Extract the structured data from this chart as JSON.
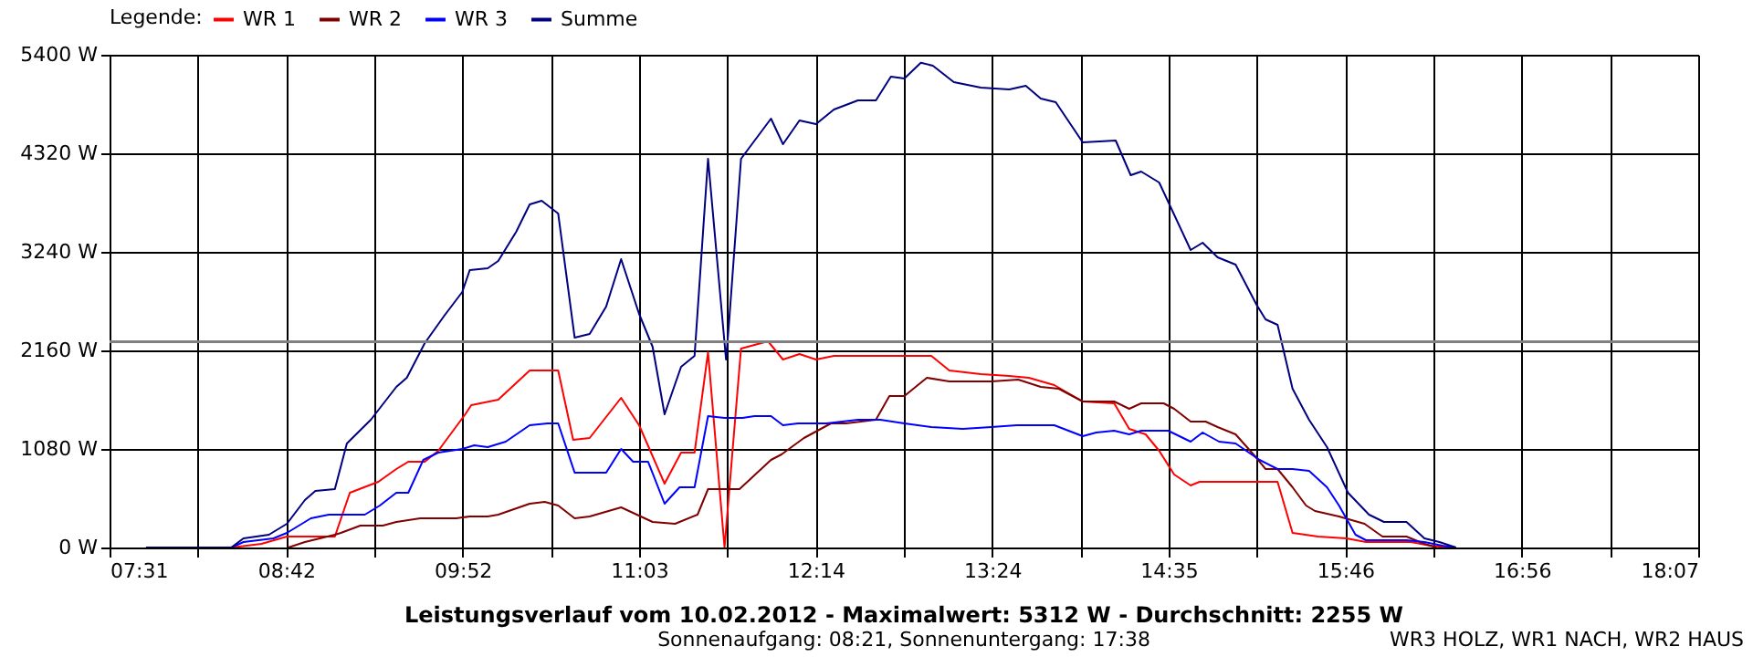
{
  "chart_data": {
    "type": "line",
    "title": "Leistungsverlauf vom 10.02.2012 - Maximalwert: 5312 W - Durchschnitt: 2255 W",
    "subtitle": "Sonnenaufgang: 08:21, Sonnenuntergang: 17:38",
    "legend_title": "Legende:",
    "annotations": [
      "WR3 HOLZ, WR1 NACH, WR2 HAUS"
    ],
    "xlim": [
      7.5167,
      18.1167
    ],
    "xticks": [
      {
        "value": 7.5167,
        "label": "07:31"
      },
      {
        "value": 8.1056,
        "label": null
      },
      {
        "value": 8.6944,
        "label": "08:42"
      },
      {
        "value": 9.2833,
        "label": null
      },
      {
        "value": 9.8722,
        "label": "09:52"
      },
      {
        "value": 10.4611,
        "label": null
      },
      {
        "value": 11.05,
        "label": "11:03"
      },
      {
        "value": 11.6389,
        "label": null
      },
      {
        "value": 12.2278,
        "label": "12:14"
      },
      {
        "value": 12.8167,
        "label": null
      },
      {
        "value": 13.4056,
        "label": "13:24"
      },
      {
        "value": 13.9944,
        "label": null
      },
      {
        "value": 14.5833,
        "label": "14:35"
      },
      {
        "value": 15.1722,
        "label": null
      },
      {
        "value": 15.7611,
        "label": "15:46"
      },
      {
        "value": 16.35,
        "label": null
      },
      {
        "value": 16.9389,
        "label": "16:56"
      },
      {
        "value": 17.5278,
        "label": null
      },
      {
        "value": 18.1167,
        "label": "18:07"
      }
    ],
    "ylim": [
      0,
      5400
    ],
    "yticks": [
      {
        "value": 0,
        "label": "0 W"
      },
      {
        "value": 1080,
        "label": "1080 W"
      },
      {
        "value": 2160,
        "label": "2160 W"
      },
      {
        "value": 3240,
        "label": "3240 W"
      },
      {
        "value": 4320,
        "label": "4320 W"
      },
      {
        "value": 5400,
        "label": "5400 W"
      }
    ],
    "grid": true,
    "legend": "top left",
    "marker": "none",
    "line_style": "solid",
    "ref_lines": [
      {
        "axis": "y",
        "value": 2255,
        "label": null,
        "color": "#808080"
      }
    ],
    "series": [
      {
        "name": "WR 1",
        "color": "#ff0000",
        "x": [
          8.33,
          8.53,
          8.7,
          9.02,
          9.12,
          9.31,
          9.43,
          9.51,
          9.62,
          9.71,
          9.89,
          9.93,
          10.11,
          10.32,
          10.51,
          10.61,
          10.72,
          10.93,
          11.05,
          11.22,
          11.33,
          11.42,
          11.51,
          11.62,
          11.73,
          11.91,
          12.01,
          12.12,
          12.23,
          12.35,
          13.0,
          13.12,
          13.33,
          13.52,
          13.65,
          13.82,
          14.01,
          14.22,
          14.32,
          14.43,
          14.52,
          14.62,
          14.73,
          14.79,
          15.31,
          15.41,
          15.58,
          15.77,
          15.9,
          16.2,
          16.33,
          16.45
        ],
        "values": [
          0,
          40,
          120,
          120,
          600,
          720,
          860,
          940,
          940,
          1060,
          1460,
          1560,
          1620,
          1940,
          1940,
          1180,
          1200,
          1640,
          1340,
          700,
          1040,
          1040,
          2140,
          0,
          2180,
          2260,
          2060,
          2120,
          2060,
          2100,
          2100,
          1940,
          1900,
          1880,
          1860,
          1780,
          1600,
          1580,
          1300,
          1240,
          1060,
          800,
          680,
          720,
          720,
          160,
          120,
          100,
          60,
          60,
          20,
          0
        ]
      },
      {
        "name": "WR 2",
        "color": "#800000",
        "x": [
          8.71,
          8.82,
          9.02,
          9.06,
          9.19,
          9.34,
          9.43,
          9.59,
          9.83,
          9.92,
          10.04,
          10.11,
          10.32,
          10.42,
          10.51,
          10.62,
          10.72,
          10.93,
          11.14,
          11.29,
          11.44,
          11.51,
          11.72,
          11.93,
          12.0,
          12.15,
          12.33,
          12.43,
          12.63,
          12.72,
          12.82,
          12.97,
          13.12,
          13.4,
          13.58,
          13.73,
          13.85,
          14.01,
          14.22,
          14.32,
          14.4,
          14.55,
          14.62,
          14.73,
          14.83,
          14.91,
          15.03,
          15.16,
          15.23,
          15.31,
          15.41,
          15.5,
          15.56,
          15.72,
          15.89,
          16.01,
          16.17,
          16.29,
          16.37
        ],
        "values": [
          0,
          60,
          140,
          160,
          240,
          240,
          280,
          320,
          320,
          340,
          340,
          360,
          480,
          500,
          460,
          320,
          340,
          440,
          280,
          260,
          360,
          640,
          640,
          960,
          1020,
          1200,
          1360,
          1360,
          1400,
          1660,
          1660,
          1860,
          1820,
          1820,
          1840,
          1760,
          1740,
          1600,
          1600,
          1520,
          1580,
          1580,
          1520,
          1380,
          1380,
          1320,
          1240,
          1000,
          860,
          860,
          660,
          460,
          400,
          340,
          260,
          120,
          120,
          40,
          0
        ]
      },
      {
        "name": "WR 3",
        "color": "#0000ff",
        "x": [
          7.76,
          8.33,
          8.41,
          8.61,
          8.7,
          8.86,
          8.98,
          9.22,
          9.32,
          9.43,
          9.51,
          9.61,
          9.71,
          9.87,
          9.95,
          10.04,
          10.16,
          10.32,
          10.44,
          10.51,
          10.62,
          10.83,
          10.93,
          11.01,
          11.11,
          11.22,
          11.32,
          11.42,
          11.51,
          11.62,
          11.74,
          11.82,
          11.93,
          12.01,
          12.11,
          12.3,
          12.51,
          12.66,
          12.82,
          13.0,
          13.21,
          13.4,
          13.57,
          13.82,
          14.01,
          14.1,
          14.22,
          14.32,
          14.4,
          14.58,
          14.73,
          14.81,
          14.92,
          15.03,
          15.19,
          15.31,
          15.41,
          15.52,
          15.64,
          15.72,
          15.83,
          15.9,
          16.17,
          16.29,
          16.41,
          16.5
        ],
        "values": [
          0,
          0,
          60,
          100,
          160,
          320,
          360,
          360,
          460,
          600,
          600,
          960,
          1040,
          1080,
          1120,
          1100,
          1160,
          1340,
          1360,
          1360,
          820,
          820,
          1080,
          940,
          940,
          480,
          660,
          660,
          1440,
          1420,
          1420,
          1440,
          1440,
          1340,
          1360,
          1360,
          1400,
          1400,
          1360,
          1320,
          1300,
          1320,
          1340,
          1340,
          1220,
          1260,
          1280,
          1240,
          1280,
          1280,
          1160,
          1260,
          1160,
          1140,
          960,
          860,
          860,
          840,
          660,
          460,
          140,
          80,
          80,
          60,
          20,
          0
        ]
      },
      {
        "name": "Summe",
        "color": "#000080",
        "x": [
          7.76,
          8.33,
          8.41,
          8.58,
          8.7,
          8.82,
          8.89,
          9.02,
          9.1,
          9.26,
          9.43,
          9.5,
          9.62,
          9.75,
          9.87,
          9.92,
          10.04,
          10.11,
          10.23,
          10.32,
          10.4,
          10.51,
          10.62,
          10.72,
          10.83,
          10.93,
          11.05,
          11.14,
          11.22,
          11.33,
          11.42,
          11.51,
          11.63,
          11.65,
          11.73,
          11.93,
          12.01,
          12.12,
          12.23,
          12.35,
          12.51,
          12.63,
          12.73,
          12.82,
          12.93,
          13.01,
          13.15,
          13.33,
          13.52,
          13.63,
          13.73,
          13.83,
          14.01,
          14.23,
          14.33,
          14.4,
          14.52,
          14.73,
          14.81,
          14.91,
          15.03,
          15.17,
          15.23,
          15.31,
          15.41,
          15.52,
          15.64,
          15.78,
          15.92,
          16.02,
          16.17,
          16.29,
          16.39,
          16.5
        ],
        "values": [
          0,
          0,
          100,
          140,
          260,
          520,
          620,
          640,
          1140,
          1400,
          1760,
          1860,
          2240,
          2540,
          2800,
          3040,
          3060,
          3140,
          3460,
          3760,
          3800,
          3660,
          2300,
          2340,
          2640,
          3160,
          2560,
          2200,
          1460,
          1980,
          2100,
          4260,
          2060,
          2460,
          4260,
          4700,
          4420,
          4680,
          4640,
          4800,
          4900,
          4900,
          5160,
          5140,
          5312,
          5280,
          5100,
          5040,
          5020,
          5060,
          4920,
          4880,
          4440,
          4460,
          4080,
          4120,
          4000,
          3260,
          3340,
          3180,
          3100,
          2660,
          2500,
          2440,
          1740,
          1400,
          1100,
          600,
          360,
          280,
          280,
          100,
          60,
          0
        ]
      }
    ]
  }
}
